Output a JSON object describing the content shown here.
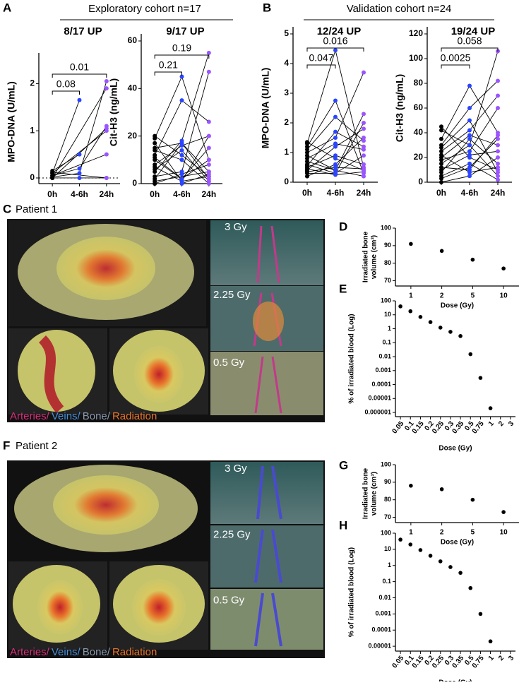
{
  "figure": {
    "panel_labels": [
      "A",
      "B",
      "C",
      "D",
      "E",
      "F",
      "G",
      "H"
    ],
    "cohorts": [
      "Exploratory cohort n=17",
      "Validation cohort n=24"
    ],
    "images": [
      {
        "title": "Patient 1",
        "doses": [
          "3 Gy",
          "2.25 Gy",
          "0.5 Gy"
        ]
      },
      {
        "title": "Patient 2",
        "doses": [
          "3 Gy",
          "2.25 Gy",
          "0.5 Gy"
        ]
      }
    ],
    "legend": [
      "Arteries/",
      "Veins/",
      "Bone/",
      "Radiation"
    ],
    "legend_colors": [
      "#d6307a",
      "#4a90d9",
      "#8a9bb0",
      "#e8742a"
    ]
  },
  "chart_data": [
    {
      "type": "paired",
      "title": "8/17 UP",
      "ylabel": "MPO-DNA (U/mL)",
      "categories": [
        "0h",
        "4-6h",
        "24h"
      ],
      "category_colors": [
        "#000000",
        "#2b45ff",
        "#9b55ff"
      ],
      "ylim": [
        -0.12,
        2.5
      ],
      "yticks": [
        0,
        1,
        2
      ],
      "hline": 0,
      "subjects": [
        [
          0.1,
          1.65,
          null
        ],
        [
          0.15,
          0.5,
          null
        ],
        [
          0.05,
          0.2,
          1.1
        ],
        [
          0.02,
          0.1,
          2.05
        ],
        [
          0,
          null,
          1.9
        ],
        [
          0.05,
          null,
          0.5
        ],
        [
          0,
          null,
          1.05
        ],
        [
          0.1,
          null,
          1.0
        ],
        [
          0,
          0,
          0
        ],
        [
          0.12,
          null,
          0
        ]
      ],
      "annotations": [
        {
          "label": "0.08",
          "groups": [
            "0h",
            "4-6h"
          ]
        },
        {
          "label": "0.01",
          "groups": [
            "0h",
            "24h"
          ]
        }
      ]
    },
    {
      "type": "paired",
      "title": "9/17 UP",
      "ylabel": "Cit-H3 (ng/mL)",
      "categories": [
        "0h",
        "4-6h",
        "24h"
      ],
      "category_colors": [
        "#000000",
        "#2b45ff",
        "#9b55ff"
      ],
      "ylim": [
        0,
        60
      ],
      "yticks": [
        0,
        20,
        40,
        60
      ],
      "subjects": [
        [
          15,
          17,
          5
        ],
        [
          19,
          45,
          10
        ],
        [
          12,
          35,
          26
        ],
        [
          8,
          16,
          20
        ],
        [
          5,
          18,
          55
        ],
        [
          3,
          5,
          47
        ],
        [
          10,
          2,
          15
        ],
        [
          14,
          10,
          0
        ],
        [
          17,
          1,
          3
        ],
        [
          0,
          4,
          8
        ],
        [
          2,
          17,
          2
        ],
        [
          7,
          1,
          20
        ],
        [
          1,
          null,
          5
        ],
        [
          20,
          12,
          3
        ],
        [
          11,
          2,
          10
        ],
        [
          6,
          14,
          1
        ],
        [
          0,
          0,
          4
        ]
      ],
      "annotations": [
        {
          "label": "0.21",
          "groups": [
            "0h",
            "4-6h"
          ]
        },
        {
          "label": "0.19",
          "groups": [
            "0h",
            "24h"
          ]
        }
      ]
    },
    {
      "type": "paired",
      "title": "12/24 UP",
      "ylabel": "MPO-DNA (U/mL)",
      "categories": [
        "0h",
        "4-6h",
        "24h"
      ],
      "category_colors": [
        "#000000",
        "#2b45ff",
        "#9b55ff"
      ],
      "ylim": [
        0,
        5
      ],
      "yticks": [
        0,
        1,
        2,
        3,
        4,
        5
      ],
      "subjects": [
        [
          1.3,
          4.45,
          0.5
        ],
        [
          1.2,
          2.75,
          0.3
        ],
        [
          1.1,
          2.2,
          1.4
        ],
        [
          1.0,
          1.5,
          3.7
        ],
        [
          0.9,
          0.4,
          2.3
        ],
        [
          0.8,
          1.3,
          1.1
        ],
        [
          0.6,
          0.3,
          2.0
        ],
        [
          0.5,
          0.9,
          0.6
        ],
        [
          0.7,
          0.4,
          0.2
        ],
        [
          0.4,
          1.2,
          1.8
        ],
        [
          0.3,
          0.3,
          0.9
        ],
        [
          0.2,
          0.6,
          1.5
        ],
        [
          0.45,
          0.25,
          0.35
        ],
        [
          1.35,
          0.8,
          0.4
        ],
        [
          0.55,
          1.7,
          1.2
        ],
        [
          0.35,
          0.5,
          0.45
        ]
      ],
      "annotations": [
        {
          "label": "0.047",
          "groups": [
            "0h",
            "4-6h"
          ]
        },
        {
          "label": "0.016",
          "groups": [
            "0h",
            "24h"
          ]
        }
      ]
    },
    {
      "type": "paired",
      "title": "19/24 UP",
      "ylabel": "Cit-H3 (ng/mL)",
      "categories": [
        "0h",
        "4-6h",
        "24h"
      ],
      "category_colors": [
        "#000000",
        "#2b45ff",
        "#9b55ff"
      ],
      "ylim": [
        0,
        120
      ],
      "yticks": [
        0,
        20,
        40,
        60,
        80,
        100,
        120
      ],
      "subjects": [
        [
          45,
          20,
          10
        ],
        [
          42,
          30,
          106
        ],
        [
          35,
          78,
          40
        ],
        [
          30,
          60,
          82
        ],
        [
          25,
          42,
          70
        ],
        [
          20,
          38,
          30
        ],
        [
          18,
          25,
          60
        ],
        [
          15,
          30,
          5
        ],
        [
          12,
          10,
          38
        ],
        [
          10,
          22,
          25
        ],
        [
          8,
          35,
          15
        ],
        [
          5,
          15,
          2
        ],
        [
          3,
          12,
          35
        ],
        [
          0,
          5,
          20
        ],
        [
          22,
          8,
          12
        ],
        [
          28,
          50,
          8
        ]
      ],
      "annotations": [
        {
          "label": "0.0025",
          "groups": [
            "0h",
            "4-6h"
          ]
        },
        {
          "label": "0.058",
          "groups": [
            "0h",
            "24h"
          ]
        }
      ]
    },
    {
      "type": "scatter",
      "ylabel": [
        "Irradiated bone",
        "volume (cm³)"
      ],
      "xlabel": "Dose (Gy)",
      "categories": [
        "1",
        "2",
        "5",
        "10"
      ],
      "values": [
        91,
        87,
        82,
        77
      ],
      "color": "#000000",
      "ylim": [
        67,
        100
      ],
      "yticks": [
        70,
        80,
        90,
        100
      ]
    },
    {
      "type": "scatter",
      "ylabel": "% of irradiated blood (Log)",
      "xlabel": "Dose (Gy)",
      "log": true,
      "rotate_labels": true,
      "categories": [
        "0.05",
        "0.1",
        "0.15",
        "0.2",
        "0.25",
        "0.3",
        "0.35",
        "0.5",
        "0.75",
        "1",
        "2",
        "3"
      ],
      "values": [
        40,
        18,
        7,
        3,
        1.2,
        0.6,
        0.3,
        0.015,
        0.0003,
        2e-06,
        null,
        null
      ],
      "color": "#000000",
      "ylim": [
        5e-07,
        100
      ],
      "yticks": [
        100,
        10,
        1,
        0.1,
        0.01,
        0.001,
        0.0001,
        1e-05,
        1e-06
      ]
    },
    {
      "type": "scatter",
      "ylabel": [
        "Irradiated bone",
        "volume (cm³)"
      ],
      "xlabel": "Dose (Gy)",
      "categories": [
        "1",
        "2",
        "5",
        "10"
      ],
      "values": [
        88,
        86,
        80,
        73
      ],
      "color": "#000000",
      "ylim": [
        67,
        100
      ],
      "yticks": [
        70,
        80,
        90,
        100
      ]
    },
    {
      "type": "scatter",
      "ylabel": "% of irradiated blood (Log)",
      "xlabel": "Dose (Gy)",
      "log": true,
      "rotate_labels": true,
      "categories": [
        "0.05",
        "0.1",
        "0.15",
        "0.2",
        "0.25",
        "0.3",
        "0.35",
        "0.5",
        "0.75",
        "1",
        "2",
        "3"
      ],
      "values": [
        40,
        20,
        9,
        4,
        1.8,
        0.8,
        0.35,
        0.04,
        0.001,
        2e-05,
        null,
        null
      ],
      "color": "#000000",
      "ylim": [
        5e-06,
        100
      ],
      "yticks": [
        100,
        10,
        1,
        0.1,
        0.01,
        0.001,
        0.0001,
        1e-05
      ]
    }
  ]
}
